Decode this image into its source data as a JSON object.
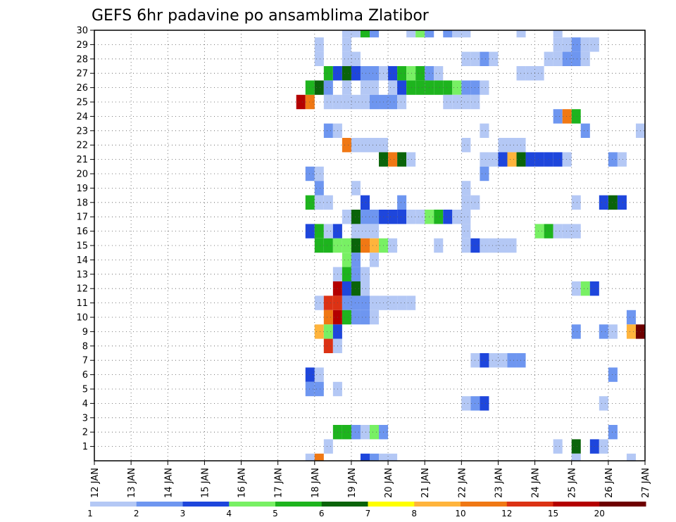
{
  "chart_data": {
    "type": "heatmap",
    "title": "GEFS 6hr padavine po ansamblima Zlatibor",
    "x_tick_labels": [
      "12 JAN",
      "13 JAN",
      "14 JAN",
      "15 JAN",
      "16 JAN",
      "17 JAN",
      "18 JAN",
      "19 JAN",
      "20 JAN",
      "21 JAN",
      "22 JAN",
      "23 JAN",
      "24 JAN",
      "25 JAN",
      "26 JAN",
      "27 JAN"
    ],
    "y_tick_labels": [
      "1",
      "2",
      "3",
      "4",
      "5",
      "6",
      "7",
      "8",
      "9",
      "10",
      "11",
      "12",
      "13",
      "14",
      "15",
      "16",
      "17",
      "18",
      "19",
      "20",
      "21",
      "22",
      "23",
      "24",
      "25",
      "26",
      "27",
      "28",
      "29",
      "30"
    ],
    "x_range": [
      12,
      27
    ],
    "y_range": [
      0,
      30
    ],
    "grid": true,
    "legend_placement": "bottom",
    "legend": {
      "labels": [
        "1",
        "2",
        "3",
        "4",
        "5",
        "6",
        "7",
        "8",
        "10",
        "12",
        "15",
        "20"
      ],
      "colors": [
        "#b4c8f5",
        "#6e96f0",
        "#1e46dc",
        "#78f064",
        "#1eb41e",
        "#0a640a",
        "#ffff00",
        "#ffb43c",
        "#f07814",
        "#dc3214",
        "#b40000",
        "#6e0000"
      ]
    },
    "cells": [
      {
        "x": 18.75,
        "y": 30,
        "v": 1
      },
      {
        "x": 19.0,
        "y": 30,
        "v": 1
      },
      {
        "x": 19.25,
        "y": 30,
        "v": 5
      },
      {
        "x": 19.5,
        "y": 30,
        "v": 2
      },
      {
        "x": 20.5,
        "y": 30,
        "v": 1
      },
      {
        "x": 20.75,
        "y": 30,
        "v": 4
      },
      {
        "x": 21.0,
        "y": 30,
        "v": 2
      },
      {
        "x": 21.5,
        "y": 30,
        "v": 2
      },
      {
        "x": 21.75,
        "y": 30,
        "v": 1
      },
      {
        "x": 22.0,
        "y": 30,
        "v": 1
      },
      {
        "x": 23.5,
        "y": 30,
        "v": 1
      },
      {
        "x": 24.5,
        "y": 30,
        "v": 1
      },
      {
        "x": 18.0,
        "y": 29,
        "v": 1
      },
      {
        "x": 18.75,
        "y": 29,
        "v": 1
      },
      {
        "x": 24.5,
        "y": 29,
        "v": 1
      },
      {
        "x": 24.75,
        "y": 29,
        "v": 1
      },
      {
        "x": 25.0,
        "y": 29,
        "v": 2
      },
      {
        "x": 25.25,
        "y": 29,
        "v": 1
      },
      {
        "x": 25.5,
        "y": 29,
        "v": 1
      },
      {
        "x": 18.0,
        "y": 28,
        "v": 1
      },
      {
        "x": 18.75,
        "y": 28,
        "v": 1
      },
      {
        "x": 19.0,
        "y": 28,
        "v": 1
      },
      {
        "x": 22.0,
        "y": 28,
        "v": 1
      },
      {
        "x": 22.25,
        "y": 28,
        "v": 1
      },
      {
        "x": 22.5,
        "y": 28,
        "v": 2
      },
      {
        "x": 22.75,
        "y": 28,
        "v": 1
      },
      {
        "x": 24.25,
        "y": 28,
        "v": 1
      },
      {
        "x": 24.5,
        "y": 28,
        "v": 1
      },
      {
        "x": 24.75,
        "y": 28,
        "v": 2
      },
      {
        "x": 25.0,
        "y": 28,
        "v": 2
      },
      {
        "x": 25.25,
        "y": 28,
        "v": 1
      },
      {
        "x": 18.25,
        "y": 27,
        "v": 5
      },
      {
        "x": 18.5,
        "y": 27,
        "v": 3
      },
      {
        "x": 18.75,
        "y": 27,
        "v": 6
      },
      {
        "x": 19.0,
        "y": 27,
        "v": 3
      },
      {
        "x": 19.25,
        "y": 27,
        "v": 2
      },
      {
        "x": 19.5,
        "y": 27,
        "v": 2
      },
      {
        "x": 19.75,
        "y": 27,
        "v": 1
      },
      {
        "x": 20.0,
        "y": 27,
        "v": 3
      },
      {
        "x": 20.25,
        "y": 27,
        "v": 5
      },
      {
        "x": 20.5,
        "y": 27,
        "v": 4
      },
      {
        "x": 20.75,
        "y": 27,
        "v": 5
      },
      {
        "x": 21.0,
        "y": 27,
        "v": 2
      },
      {
        "x": 21.25,
        "y": 27,
        "v": 1
      },
      {
        "x": 23.5,
        "y": 27,
        "v": 1
      },
      {
        "x": 23.75,
        "y": 27,
        "v": 1
      },
      {
        "x": 24.0,
        "y": 27,
        "v": 1
      },
      {
        "x": 17.75,
        "y": 26,
        "v": 5
      },
      {
        "x": 18.0,
        "y": 26,
        "v": 6
      },
      {
        "x": 18.25,
        "y": 26,
        "v": 2
      },
      {
        "x": 18.75,
        "y": 26,
        "v": 1
      },
      {
        "x": 19.25,
        "y": 26,
        "v": 1
      },
      {
        "x": 19.5,
        "y": 26,
        "v": 1
      },
      {
        "x": 20.0,
        "y": 26,
        "v": 1
      },
      {
        "x": 20.25,
        "y": 26,
        "v": 3
      },
      {
        "x": 20.5,
        "y": 26,
        "v": 5
      },
      {
        "x": 20.75,
        "y": 26,
        "v": 5
      },
      {
        "x": 21.0,
        "y": 26,
        "v": 5
      },
      {
        "x": 21.25,
        "y": 26,
        "v": 5
      },
      {
        "x": 21.5,
        "y": 26,
        "v": 5
      },
      {
        "x": 21.75,
        "y": 26,
        "v": 4
      },
      {
        "x": 22.0,
        "y": 26,
        "v": 2
      },
      {
        "x": 22.25,
        "y": 26,
        "v": 2
      },
      {
        "x": 22.5,
        "y": 26,
        "v": 1
      },
      {
        "x": 17.5,
        "y": 25,
        "v": 15
      },
      {
        "x": 17.75,
        "y": 25,
        "v": 10
      },
      {
        "x": 18.25,
        "y": 25,
        "v": 1
      },
      {
        "x": 18.5,
        "y": 25,
        "v": 1
      },
      {
        "x": 18.75,
        "y": 25,
        "v": 1
      },
      {
        "x": 19.0,
        "y": 25,
        "v": 1
      },
      {
        "x": 19.25,
        "y": 25,
        "v": 1
      },
      {
        "x": 19.5,
        "y": 25,
        "v": 2
      },
      {
        "x": 19.75,
        "y": 25,
        "v": 2
      },
      {
        "x": 20.0,
        "y": 25,
        "v": 2
      },
      {
        "x": 20.25,
        "y": 25,
        "v": 1
      },
      {
        "x": 21.5,
        "y": 25,
        "v": 1
      },
      {
        "x": 21.75,
        "y": 25,
        "v": 1
      },
      {
        "x": 22.0,
        "y": 25,
        "v": 1
      },
      {
        "x": 22.25,
        "y": 25,
        "v": 1
      },
      {
        "x": 24.5,
        "y": 24,
        "v": 2
      },
      {
        "x": 24.75,
        "y": 24,
        "v": 10
      },
      {
        "x": 25.0,
        "y": 24,
        "v": 5
      },
      {
        "x": 18.25,
        "y": 23,
        "v": 2
      },
      {
        "x": 18.5,
        "y": 23,
        "v": 1
      },
      {
        "x": 22.5,
        "y": 23,
        "v": 1
      },
      {
        "x": 25.25,
        "y": 23,
        "v": 2
      },
      {
        "x": 26.75,
        "y": 23,
        "v": 1
      },
      {
        "x": 18.75,
        "y": 22,
        "v": 10
      },
      {
        "x": 19.0,
        "y": 22,
        "v": 1
      },
      {
        "x": 19.25,
        "y": 22,
        "v": 1
      },
      {
        "x": 19.5,
        "y": 22,
        "v": 1
      },
      {
        "x": 19.75,
        "y": 22,
        "v": 1
      },
      {
        "x": 22.0,
        "y": 22,
        "v": 1
      },
      {
        "x": 23.0,
        "y": 22,
        "v": 1
      },
      {
        "x": 23.25,
        "y": 22,
        "v": 1
      },
      {
        "x": 23.5,
        "y": 22,
        "v": 1
      },
      {
        "x": 19.75,
        "y": 21,
        "v": 6
      },
      {
        "x": 20.0,
        "y": 21,
        "v": 10
      },
      {
        "x": 20.25,
        "y": 21,
        "v": 6
      },
      {
        "x": 20.5,
        "y": 21,
        "v": 1
      },
      {
        "x": 22.5,
        "y": 21,
        "v": 1
      },
      {
        "x": 22.75,
        "y": 21,
        "v": 1
      },
      {
        "x": 23.0,
        "y": 21,
        "v": 3
      },
      {
        "x": 23.25,
        "y": 21,
        "v": 8
      },
      {
        "x": 23.5,
        "y": 21,
        "v": 6
      },
      {
        "x": 23.75,
        "y": 21,
        "v": 3
      },
      {
        "x": 24.0,
        "y": 21,
        "v": 3
      },
      {
        "x": 24.25,
        "y": 21,
        "v": 3
      },
      {
        "x": 24.5,
        "y": 21,
        "v": 3
      },
      {
        "x": 24.75,
        "y": 21,
        "v": 1
      },
      {
        "x": 26.0,
        "y": 21,
        "v": 2
      },
      {
        "x": 26.25,
        "y": 21,
        "v": 1
      },
      {
        "x": 17.75,
        "y": 20,
        "v": 2
      },
      {
        "x": 18.0,
        "y": 20,
        "v": 1
      },
      {
        "x": 22.5,
        "y": 20,
        "v": 2
      },
      {
        "x": 18.0,
        "y": 19,
        "v": 2
      },
      {
        "x": 19.0,
        "y": 19,
        "v": 1
      },
      {
        "x": 22.0,
        "y": 19,
        "v": 1
      },
      {
        "x": 17.75,
        "y": 18,
        "v": 5
      },
      {
        "x": 18.0,
        "y": 18,
        "v": 1
      },
      {
        "x": 18.25,
        "y": 18,
        "v": 1
      },
      {
        "x": 19.25,
        "y": 18,
        "v": 3
      },
      {
        "x": 20.25,
        "y": 18,
        "v": 2
      },
      {
        "x": 22.0,
        "y": 18,
        "v": 1
      },
      {
        "x": 22.25,
        "y": 18,
        "v": 1
      },
      {
        "x": 25.0,
        "y": 18,
        "v": 1
      },
      {
        "x": 25.75,
        "y": 18,
        "v": 3
      },
      {
        "x": 26.0,
        "y": 18,
        "v": 6
      },
      {
        "x": 26.25,
        "y": 18,
        "v": 3
      },
      {
        "x": 18.75,
        "y": 17,
        "v": 1
      },
      {
        "x": 19.0,
        "y": 17,
        "v": 6
      },
      {
        "x": 19.25,
        "y": 17,
        "v": 2
      },
      {
        "x": 19.5,
        "y": 17,
        "v": 2
      },
      {
        "x": 19.75,
        "y": 17,
        "v": 3
      },
      {
        "x": 20.0,
        "y": 17,
        "v": 3
      },
      {
        "x": 20.25,
        "y": 17,
        "v": 3
      },
      {
        "x": 20.5,
        "y": 17,
        "v": 1
      },
      {
        "x": 20.75,
        "y": 17,
        "v": 1
      },
      {
        "x": 21.0,
        "y": 17,
        "v": 4
      },
      {
        "x": 21.25,
        "y": 17,
        "v": 5
      },
      {
        "x": 21.5,
        "y": 17,
        "v": 3
      },
      {
        "x": 21.75,
        "y": 17,
        "v": 1
      },
      {
        "x": 22.0,
        "y": 17,
        "v": 1
      },
      {
        "x": 17.75,
        "y": 16,
        "v": 3
      },
      {
        "x": 18.0,
        "y": 16,
        "v": 5
      },
      {
        "x": 18.25,
        "y": 16,
        "v": 1
      },
      {
        "x": 18.5,
        "y": 16,
        "v": 3
      },
      {
        "x": 19.0,
        "y": 16,
        "v": 1
      },
      {
        "x": 19.25,
        "y": 16,
        "v": 1
      },
      {
        "x": 19.5,
        "y": 16,
        "v": 1
      },
      {
        "x": 22.0,
        "y": 16,
        "v": 1
      },
      {
        "x": 24.0,
        "y": 16,
        "v": 4
      },
      {
        "x": 24.25,
        "y": 16,
        "v": 5
      },
      {
        "x": 24.5,
        "y": 16,
        "v": 1
      },
      {
        "x": 24.75,
        "y": 16,
        "v": 1
      },
      {
        "x": 25.0,
        "y": 16,
        "v": 1
      },
      {
        "x": 18.0,
        "y": 15,
        "v": 5
      },
      {
        "x": 18.25,
        "y": 15,
        "v": 5
      },
      {
        "x": 18.5,
        "y": 15,
        "v": 4
      },
      {
        "x": 18.75,
        "y": 15,
        "v": 4
      },
      {
        "x": 19.0,
        "y": 15,
        "v": 6
      },
      {
        "x": 19.25,
        "y": 15,
        "v": 10
      },
      {
        "x": 19.5,
        "y": 15,
        "v": 8
      },
      {
        "x": 19.75,
        "y": 15,
        "v": 4
      },
      {
        "x": 20.0,
        "y": 15,
        "v": 1
      },
      {
        "x": 21.25,
        "y": 15,
        "v": 1
      },
      {
        "x": 22.0,
        "y": 15,
        "v": 1
      },
      {
        "x": 22.25,
        "y": 15,
        "v": 3
      },
      {
        "x": 22.5,
        "y": 15,
        "v": 1
      },
      {
        "x": 22.75,
        "y": 15,
        "v": 1
      },
      {
        "x": 23.0,
        "y": 15,
        "v": 1
      },
      {
        "x": 23.25,
        "y": 15,
        "v": 1
      },
      {
        "x": 18.75,
        "y": 14,
        "v": 4
      },
      {
        "x": 19.0,
        "y": 14,
        "v": 2
      },
      {
        "x": 19.5,
        "y": 14,
        "v": 1
      },
      {
        "x": 18.5,
        "y": 13,
        "v": 1
      },
      {
        "x": 18.75,
        "y": 13,
        "v": 5
      },
      {
        "x": 19.0,
        "y": 13,
        "v": 2
      },
      {
        "x": 19.25,
        "y": 13,
        "v": 1
      },
      {
        "x": 18.5,
        "y": 12,
        "v": 15
      },
      {
        "x": 18.75,
        "y": 12,
        "v": 3
      },
      {
        "x": 19.0,
        "y": 12,
        "v": 6
      },
      {
        "x": 19.25,
        "y": 12,
        "v": 1
      },
      {
        "x": 25.0,
        "y": 12,
        "v": 1
      },
      {
        "x": 25.25,
        "y": 12,
        "v": 4
      },
      {
        "x": 25.5,
        "y": 12,
        "v": 3
      },
      {
        "x": 18.0,
        "y": 11,
        "v": 1
      },
      {
        "x": 18.25,
        "y": 11,
        "v": 12
      },
      {
        "x": 18.5,
        "y": 11,
        "v": 12
      },
      {
        "x": 18.75,
        "y": 11,
        "v": 2
      },
      {
        "x": 19.0,
        "y": 11,
        "v": 2
      },
      {
        "x": 19.25,
        "y": 11,
        "v": 2
      },
      {
        "x": 19.5,
        "y": 11,
        "v": 1
      },
      {
        "x": 19.75,
        "y": 11,
        "v": 1
      },
      {
        "x": 20.0,
        "y": 11,
        "v": 1
      },
      {
        "x": 20.25,
        "y": 11,
        "v": 1
      },
      {
        "x": 20.5,
        "y": 11,
        "v": 1
      },
      {
        "x": 18.25,
        "y": 10,
        "v": 10
      },
      {
        "x": 18.5,
        "y": 10,
        "v": 15
      },
      {
        "x": 18.75,
        "y": 10,
        "v": 5
      },
      {
        "x": 19.0,
        "y": 10,
        "v": 2
      },
      {
        "x": 19.25,
        "y": 10,
        "v": 2
      },
      {
        "x": 19.5,
        "y": 10,
        "v": 1
      },
      {
        "x": 26.5,
        "y": 10,
        "v": 2
      },
      {
        "x": 18.0,
        "y": 9,
        "v": 8
      },
      {
        "x": 18.25,
        "y": 9,
        "v": 4
      },
      {
        "x": 18.5,
        "y": 9,
        "v": 3
      },
      {
        "x": 25.0,
        "y": 9,
        "v": 2
      },
      {
        "x": 25.75,
        "y": 9,
        "v": 2
      },
      {
        "x": 26.0,
        "y": 9,
        "v": 1
      },
      {
        "x": 26.5,
        "y": 9,
        "v": 8
      },
      {
        "x": 26.75,
        "y": 9,
        "v": 20
      },
      {
        "x": 18.25,
        "y": 8,
        "v": 12
      },
      {
        "x": 18.5,
        "y": 8,
        "v": 1
      },
      {
        "x": 22.25,
        "y": 7,
        "v": 1
      },
      {
        "x": 22.5,
        "y": 7,
        "v": 3
      },
      {
        "x": 22.75,
        "y": 7,
        "v": 1
      },
      {
        "x": 23.0,
        "y": 7,
        "v": 1
      },
      {
        "x": 23.25,
        "y": 7,
        "v": 2
      },
      {
        "x": 23.5,
        "y": 7,
        "v": 2
      },
      {
        "x": 17.75,
        "y": 6,
        "v": 3
      },
      {
        "x": 18.0,
        "y": 6,
        "v": 1
      },
      {
        "x": 26.0,
        "y": 6,
        "v": 2
      },
      {
        "x": 17.75,
        "y": 5,
        "v": 2
      },
      {
        "x": 18.0,
        "y": 5,
        "v": 2
      },
      {
        "x": 18.5,
        "y": 5,
        "v": 1
      },
      {
        "x": 22.0,
        "y": 4,
        "v": 1
      },
      {
        "x": 22.25,
        "y": 4,
        "v": 2
      },
      {
        "x": 22.5,
        "y": 4,
        "v": 3
      },
      {
        "x": 25.75,
        "y": 4,
        "v": 1
      },
      {
        "x": 18.5,
        "y": 2,
        "v": 5
      },
      {
        "x": 18.75,
        "y": 2,
        "v": 5
      },
      {
        "x": 19.0,
        "y": 2,
        "v": 2
      },
      {
        "x": 19.25,
        "y": 2,
        "v": 1
      },
      {
        "x": 19.5,
        "y": 2,
        "v": 4
      },
      {
        "x": 19.75,
        "y": 2,
        "v": 2
      },
      {
        "x": 26.0,
        "y": 2,
        "v": 2
      },
      {
        "x": 24.5,
        "y": 1,
        "v": 1
      },
      {
        "x": 25.0,
        "y": 1,
        "v": 6
      },
      {
        "x": 25.5,
        "y": 1,
        "v": 3
      },
      {
        "x": 25.75,
        "y": 1,
        "v": 1
      },
      {
        "x": 18.25,
        "y": 1,
        "v": 1
      },
      {
        "x": 17.75,
        "y": 0,
        "v": 1
      },
      {
        "x": 18.0,
        "y": 0,
        "v": 10
      },
      {
        "x": 19.25,
        "y": 0,
        "v": 3
      },
      {
        "x": 19.5,
        "y": 0,
        "v": 2
      },
      {
        "x": 19.75,
        "y": 0,
        "v": 1
      },
      {
        "x": 20.0,
        "y": 0,
        "v": 1
      },
      {
        "x": 25.0,
        "y": 0,
        "v": 1
      },
      {
        "x": 26.5,
        "y": 0,
        "v": 1
      }
    ]
  }
}
